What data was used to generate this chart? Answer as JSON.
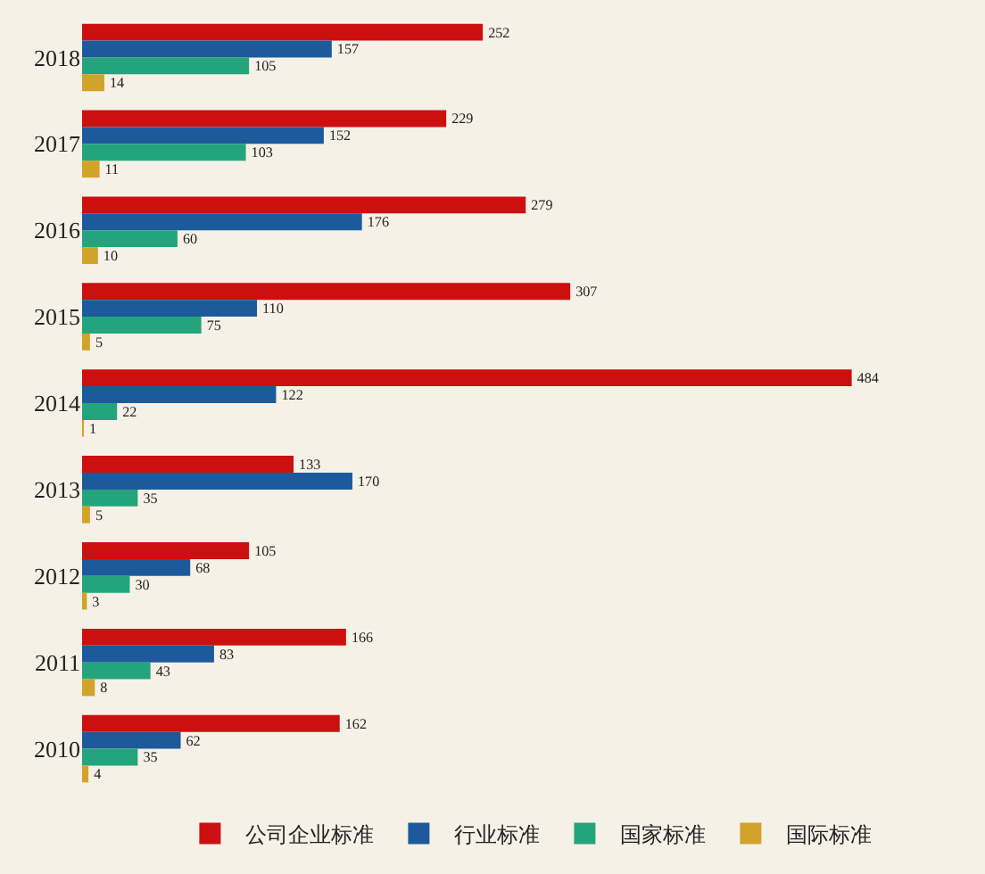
{
  "chart_data": {
    "type": "bar",
    "orientation": "horizontal",
    "categories": [
      "2018",
      "2017",
      "2016",
      "2015",
      "2014",
      "2013",
      "2012",
      "2011",
      "2010"
    ],
    "series": [
      {
        "name": "公司企业标准",
        "color": "#cc1010",
        "values": [
          252,
          229,
          279,
          307,
          484,
          133,
          105,
          166,
          162
        ]
      },
      {
        "name": "行业标准",
        "color": "#1d5a9c",
        "values": [
          157,
          152,
          176,
          110,
          122,
          170,
          68,
          83,
          62
        ]
      },
      {
        "name": "国家标准",
        "color": "#23a47c",
        "values": [
          105,
          103,
          60,
          75,
          22,
          35,
          30,
          43,
          35
        ]
      },
      {
        "name": "国际标准",
        "color": "#d2a32a",
        "values": [
          14,
          11,
          10,
          5,
          1,
          5,
          3,
          8,
          4
        ]
      }
    ],
    "data_labels": true,
    "legend": "bottom"
  }
}
